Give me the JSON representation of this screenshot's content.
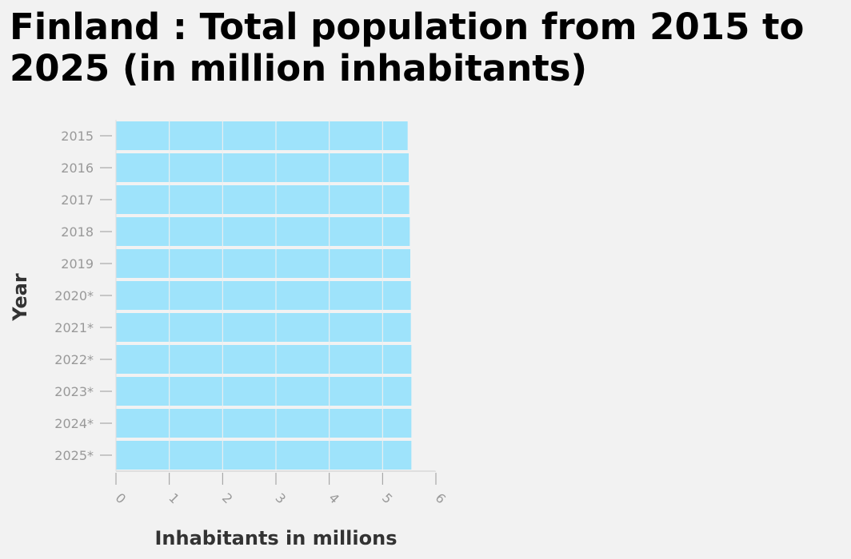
{
  "chart_data": {
    "type": "bar",
    "orientation": "horizontal",
    "title": "Finland : Total population from 2015 to 2025 (in million inhabitants)",
    "xlabel": "Inhabitants in millions",
    "ylabel": "Year",
    "categories": [
      "2015",
      "2016",
      "2017",
      "2018",
      "2019",
      "2020*",
      "2021*",
      "2022*",
      "2023*",
      "2024*",
      "2025*"
    ],
    "values": [
      5.47,
      5.49,
      5.5,
      5.51,
      5.52,
      5.53,
      5.53,
      5.54,
      5.54,
      5.54,
      5.54
    ],
    "xlim": [
      0,
      6
    ],
    "xticks": [
      "0",
      "1",
      "2",
      "3",
      "4",
      "5",
      "6"
    ],
    "grid": true,
    "bar_color": "#9ee3fb",
    "grid_color": "#ffffff",
    "background_color": "#f2f2f2"
  }
}
